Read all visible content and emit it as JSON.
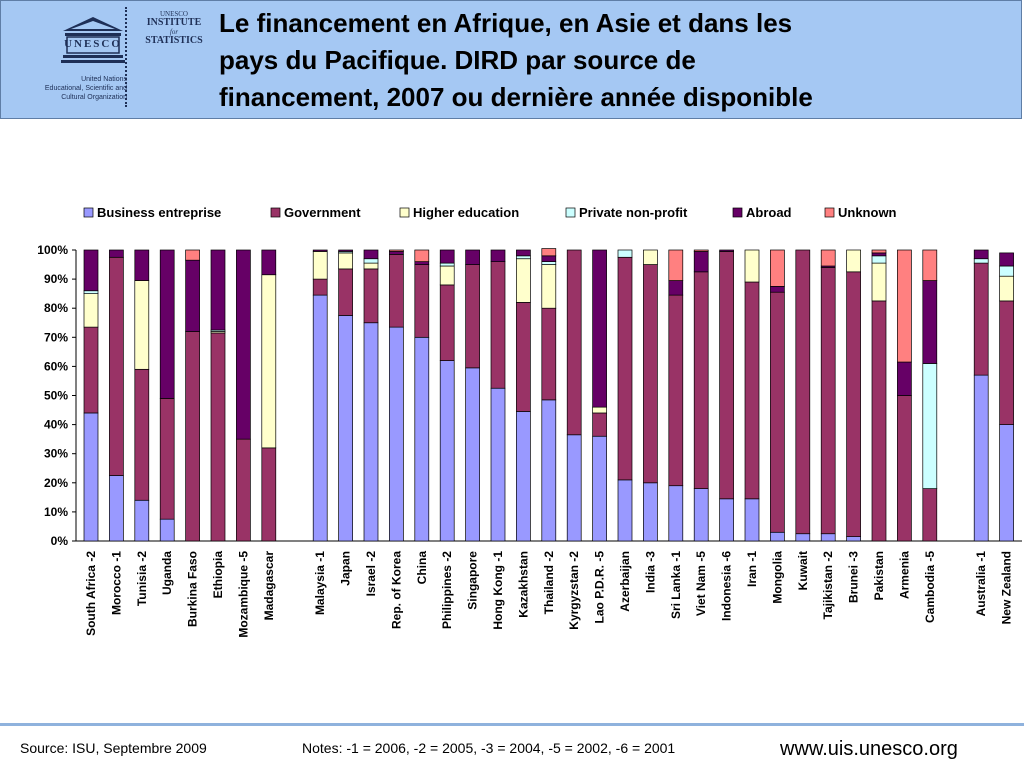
{
  "header": {
    "title_lines": [
      "Le financement en Afrique, en Asie et dans les",
      "pays du Pacifique. DIRD par source de",
      "financement, 2007 ou dernière année disponible"
    ],
    "logo": {
      "unesco_text": "UNESCO",
      "org_lines": [
        "United Nations",
        "Educational, Scientific and",
        "Cultural Organization"
      ],
      "uis_lines": [
        "UNESCO",
        "INSTITUTE",
        "for",
        "STATISTICS"
      ]
    }
  },
  "chart_data": {
    "type": "bar",
    "stacked": true,
    "percent": true,
    "legend_position": "top",
    "ylim": [
      0,
      100
    ],
    "yticks": [
      "0%",
      "10%",
      "20%",
      "30%",
      "40%",
      "50%",
      "60%",
      "70%",
      "80%",
      "90%",
      "100%"
    ],
    "grid": false,
    "colors": {
      "Business entreprise": "#9999ff",
      "Government": "#993366",
      "Higher education": "#ffffcc",
      "Private non-profit": "#ccffff",
      "Abroad": "#660066",
      "Unknown": "#ff8080"
    },
    "groups": [
      [
        "South Africa -2",
        "Morocco -1",
        "Tunisia -2",
        "Uganda",
        "Burkina Faso",
        "Ethiopia",
        "Mozambique -5",
        "Madagascar"
      ],
      [
        "Malaysia -1",
        "Japan",
        "Israel -2",
        "Rep. of Korea",
        "China",
        "Philippines -2",
        "Singapore",
        "Hong Kong -1",
        "Kazakhstan",
        "Thailand -2",
        "Kyrgyzstan -2",
        "Lao P.D.R. -5",
        "Azerbaijan",
        "India -3",
        "Sri Lanka -1",
        "Viet Nam -5",
        "Indonesia -6",
        "Iran -1",
        "Mongolia",
        "Kuwait",
        "Tajikistan -2",
        "Brunei -3",
        "Pakistan",
        "Armenia",
        "Cambodia -5"
      ],
      [
        "Australia -1",
        "New Zealand"
      ]
    ],
    "categories": [
      "South Africa -2",
      "Morocco -1",
      "Tunisia -2",
      "Uganda",
      "Burkina Faso",
      "Ethiopia",
      "Mozambique -5",
      "Madagascar",
      "Malaysia -1",
      "Japan",
      "Israel -2",
      "Rep. of Korea",
      "China",
      "Philippines -2",
      "Singapore",
      "Hong Kong -1",
      "Kazakhstan",
      "Thailand -2",
      "Kyrgyzstan -2",
      "Lao P.D.R. -5",
      "Azerbaijan",
      "India -3",
      "Sri Lanka -1",
      "Viet Nam -5",
      "Indonesia -6",
      "Iran -1",
      "Mongolia",
      "Kuwait",
      "Tajikistan -2",
      "Brunei -3",
      "Pakistan",
      "Armenia",
      "Cambodia -5",
      "Australia -1",
      "New Zealand"
    ],
    "series": [
      {
        "name": "Business entreprise",
        "values": [
          44,
          22.5,
          14,
          7.5,
          0,
          0,
          0,
          0,
          84.5,
          77.5,
          75,
          73.5,
          70,
          62,
          59.5,
          52.5,
          44.5,
          48.5,
          36.5,
          36,
          21,
          20,
          19,
          18,
          14.5,
          14.5,
          3,
          2.5,
          2.5,
          1.5,
          0,
          0,
          0,
          57,
          40
        ]
      },
      {
        "name": "Government",
        "values": [
          29.5,
          75,
          45,
          41.5,
          72,
          71.5,
          35,
          32,
          5.5,
          16,
          18.5,
          25,
          25,
          26,
          35.5,
          43.5,
          37.5,
          31.5,
          63.5,
          8,
          76.5,
          75,
          65.5,
          74.5,
          85,
          74.5,
          82.5,
          97.5,
          91.5,
          91,
          82.5,
          50,
          18,
          38.5,
          42.5
        ]
      },
      {
        "name": "Higher education",
        "values": [
          11.5,
          0,
          30.5,
          0,
          0,
          0.5,
          0,
          59.5,
          9.5,
          5.5,
          2,
          0,
          0,
          6.5,
          0,
          0,
          15,
          15,
          0,
          2,
          0,
          5,
          0,
          0,
          0,
          11,
          0,
          0,
          0,
          7.5,
          13,
          0,
          0,
          0,
          8.5
        ]
      },
      {
        "name": "Private non-profit",
        "values": [
          1,
          0,
          0,
          0,
          0,
          0.5,
          0,
          0,
          0,
          0.5,
          1.5,
          0,
          0,
          1,
          0,
          0,
          1,
          1,
          0,
          0,
          2.5,
          0,
          0,
          0,
          0,
          0,
          0,
          0,
          0,
          0,
          2.5,
          0,
          43,
          1.5,
          3.5
        ]
      },
      {
        "name": "Abroad",
        "values": [
          14,
          2.5,
          10.5,
          51,
          24.5,
          27.5,
          65,
          8.5,
          0.5,
          0.5,
          3,
          1,
          1,
          4.5,
          5,
          4,
          2,
          2,
          0,
          54,
          0,
          0,
          5,
          7,
          0.5,
          0,
          2,
          0,
          0.5,
          0,
          1,
          11.5,
          28.5,
          3,
          4.5
        ]
      },
      {
        "name": "Unknown",
        "values": [
          0,
          0,
          0,
          0,
          3.5,
          0,
          0,
          0,
          0,
          0,
          0,
          0.5,
          4,
          0,
          0,
          0,
          0,
          2.5,
          0,
          0,
          0,
          0,
          10.5,
          0.5,
          0,
          0,
          12.5,
          0,
          5.5,
          0,
          1,
          38.5,
          10.5,
          0,
          0
        ]
      }
    ]
  },
  "footer": {
    "source": "Source: ISU, Septembre 2009",
    "notes": "Notes: -1 = 2006, -2 = 2005, -3 = 2004, -5 = 2002, -6 = 2001",
    "website": "www.uis.unesco.org"
  }
}
